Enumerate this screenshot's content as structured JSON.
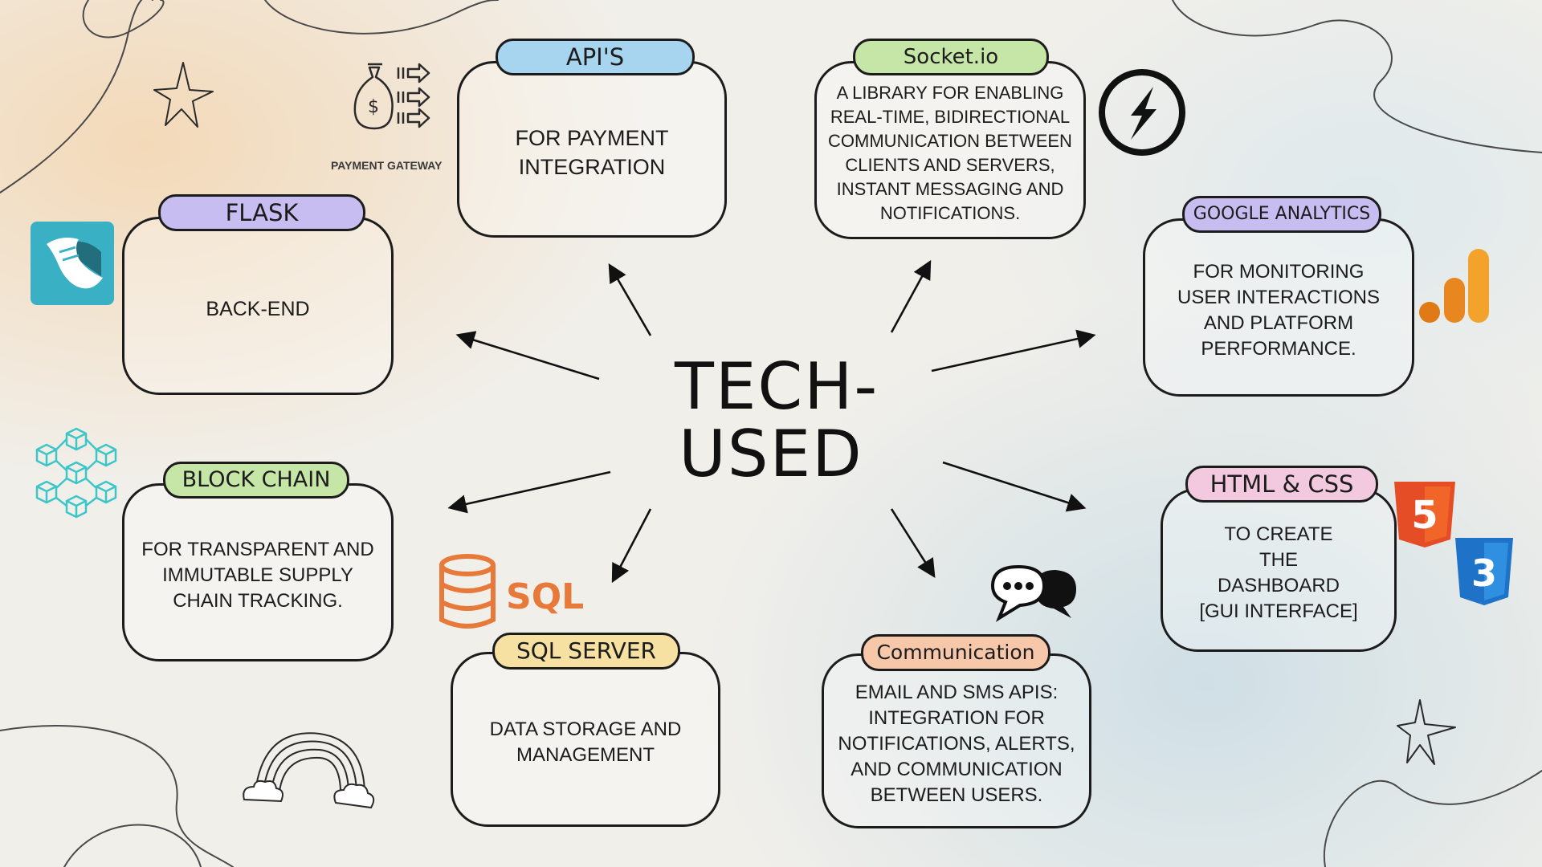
{
  "title_lines": [
    "TECH-",
    "USED"
  ],
  "payment_gateway_label": "PAYMENT GATEWAY",
  "nodes": {
    "apis": {
      "tag": "API'S",
      "desc": "FOR PAYMENT INTEGRATION",
      "tag_color": "#a7d4ee"
    },
    "socketio": {
      "tag": "Socket.io",
      "desc": "A LIBRARY FOR ENABLING REAL-TIME, BIDIRECTIONAL COMMUNICATION BETWEEN CLIENTS AND SERVERS, INSTANT MESSAGING AND NOTIFICATIONS.",
      "tag_color": "#c6e6a8"
    },
    "flask": {
      "tag": "FLASK",
      "desc": "BACK-END",
      "tag_color": "#c7bdf0"
    },
    "google_analytics": {
      "tag": "GOOGLE ANALYTICS",
      "desc": "FOR MONITORING USER INTERACTIONS AND PLATFORM PERFORMANCE.",
      "tag_color": "#c7bdf0"
    },
    "blockchain": {
      "tag": "BLOCK CHAIN",
      "desc": "FOR TRANSPARENT AND IMMUTABLE SUPPLY CHAIN TRACKING.",
      "tag_color": "#c6e6a8"
    },
    "html_css": {
      "tag": "HTML & CSS",
      "desc_lines": [
        "TO CREATE",
        "THE",
        "DASHBOARD",
        "[GUI INTERFACE]"
      ],
      "tag_color": "#f3c9e0"
    },
    "sql_server": {
      "tag": "SQL SERVER",
      "desc": "DATA STORAGE AND MANAGEMENT",
      "tag_color": "#f6e1a2"
    },
    "communication": {
      "tag": "Communication",
      "desc": "EMAIL AND SMS APIS: INTEGRATION FOR NOTIFICATIONS, ALERTS, AND COMMUNICATION BETWEEN USERS.",
      "tag_color": "#f6c7a8"
    }
  },
  "icons": {
    "sql_logo_text": "SQL",
    "html5_glyph": "5",
    "css3_glyph": "3",
    "payment_symbol": "$"
  },
  "colors": {
    "ink": "#1c1c1c",
    "sql_orange": "#e7793a",
    "html_orange": "#e44d26",
    "css_blue": "#1e73c8",
    "analytics_orange": "#f3a32c",
    "flask_teal": "#3ab0c4",
    "blockchain_cyan": "#3cc6c8"
  }
}
